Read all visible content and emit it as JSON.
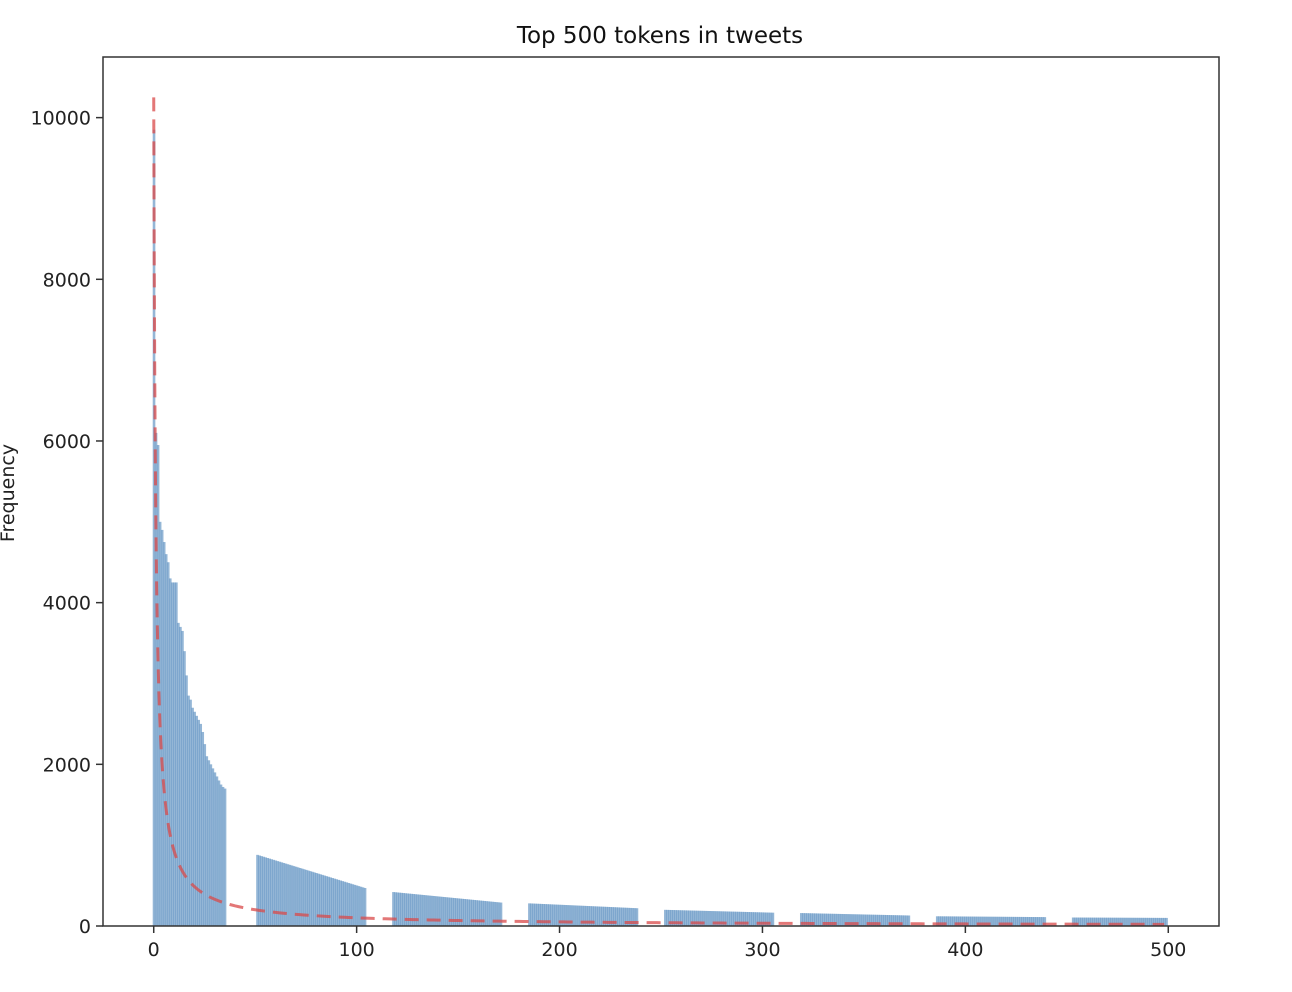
{
  "chart_data": {
    "type": "bar",
    "title": "Top 500 tokens in tweets",
    "xlabel": "",
    "ylabel": "Frequency",
    "xlim": [
      -25,
      525
    ],
    "ylim": [
      0,
      10750
    ],
    "x_ticks": [
      0,
      100,
      200,
      300,
      400,
      500
    ],
    "y_ticks": [
      0,
      2000,
      4000,
      6000,
      8000,
      10000
    ],
    "grid": false,
    "colors": {
      "bars": "#5b8fc0",
      "fit_line": "#d94a4a",
      "axes": "#333333"
    },
    "series": [
      {
        "type": "bar",
        "groups": [
          {
            "x_start": 0,
            "values": [
              9850,
              6100,
              5950,
              5000,
              4900,
              4750,
              4600,
              4500,
              4300,
              4250,
              4250,
              4250,
              3750,
              3700,
              3650,
              3400,
              3100,
              2850,
              2800,
              2700,
              2650,
              2600,
              2550,
              2500,
              2400,
              2250,
              2100,
              2050,
              2000,
              1950,
              1900,
              1850,
              1800,
              1750,
              1720,
              1700
            ]
          },
          {
            "x_start": 51,
            "x_end": 104,
            "start": 880,
            "end": 470
          },
          {
            "x_start": 118,
            "x_end": 171,
            "start": 420,
            "end": 290
          },
          {
            "x_start": 185,
            "x_end": 238,
            "start": 280,
            "end": 220
          },
          {
            "x_start": 252,
            "x_end": 305,
            "start": 200,
            "end": 165
          },
          {
            "x_start": 319,
            "x_end": 372,
            "start": 160,
            "end": 130
          },
          {
            "x_start": 386,
            "x_end": 439,
            "start": 120,
            "end": 110
          },
          {
            "x_start": 453,
            "x_end": 499,
            "start": 105,
            "end": 100
          }
        ]
      },
      {
        "type": "line",
        "style": "dashed",
        "fit": "zipf",
        "peak": 10250,
        "x_range": [
          0,
          499
        ]
      }
    ]
  }
}
